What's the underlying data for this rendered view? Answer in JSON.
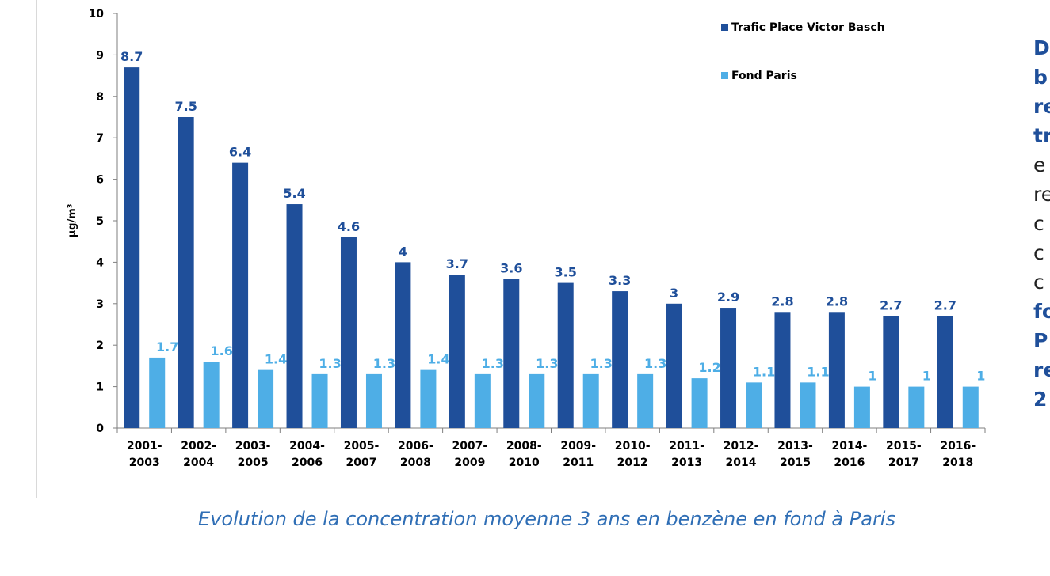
{
  "chart_data": {
    "type": "bar",
    "categories": [
      [
        "2001-",
        "2003"
      ],
      [
        "2002-",
        "2004"
      ],
      [
        "2003-",
        "2005"
      ],
      [
        "2004-",
        "2006"
      ],
      [
        "2005-",
        "2007"
      ],
      [
        "2006-",
        "2008"
      ],
      [
        "2007-",
        "2009"
      ],
      [
        "2008-",
        "2010"
      ],
      [
        "2009-",
        "2011"
      ],
      [
        "2010-",
        "2012"
      ],
      [
        "2011-",
        "2013"
      ],
      [
        "2012-",
        "2014"
      ],
      [
        "2013-",
        "2015"
      ],
      [
        "2014-",
        "2016"
      ],
      [
        "2015-",
        "2017"
      ],
      [
        "2016-",
        "2018"
      ]
    ],
    "series": [
      {
        "name": "Trafic Place Victor Basch",
        "color": "#1f4f9a",
        "values": [
          8.7,
          7.5,
          6.4,
          5.4,
          4.6,
          4,
          3.7,
          3.6,
          3.5,
          3.3,
          3,
          2.9,
          2.8,
          2.8,
          2.7,
          2.7
        ]
      },
      {
        "name": "Fond Paris",
        "color": "#4eaee6",
        "values": [
          1.7,
          1.6,
          1.4,
          1.3,
          1.3,
          1.4,
          1.3,
          1.3,
          1.3,
          1.3,
          1.2,
          1.1,
          1.1,
          1,
          1,
          1
        ]
      }
    ],
    "ylabel": "µg/m³",
    "ylim": [
      0,
      10
    ],
    "yticks": [
      0,
      1,
      2,
      3,
      4,
      5,
      6,
      7,
      8,
      9,
      10
    ],
    "grid": false,
    "legend_position": "top-right",
    "data_labels": true
  },
  "caption": "Evolution de la concentration moyenne 3 ans en benzène en fond à Paris",
  "side_text": {
    "lines": [
      {
        "text": "D",
        "style": "bold-blue"
      },
      {
        "text": "b",
        "style": "bold-blue"
      },
      {
        "text": "re",
        "style": "bold-blue"
      },
      {
        "text": "tr",
        "style": "bold-blue"
      },
      {
        "text": "e",
        "style": "normal"
      },
      {
        "text": "re",
        "style": "normal"
      },
      {
        "text": "c",
        "style": "normal"
      },
      {
        "text": "c",
        "style": "normal"
      },
      {
        "text": "c",
        "style": "normal"
      },
      {
        "text": "fo",
        "style": "bold-blue"
      },
      {
        "text": "P",
        "style": "bold-blue"
      },
      {
        "text": "re",
        "style": "bold-blue"
      },
      {
        "text": "2",
        "style": "bold-blue"
      }
    ]
  }
}
